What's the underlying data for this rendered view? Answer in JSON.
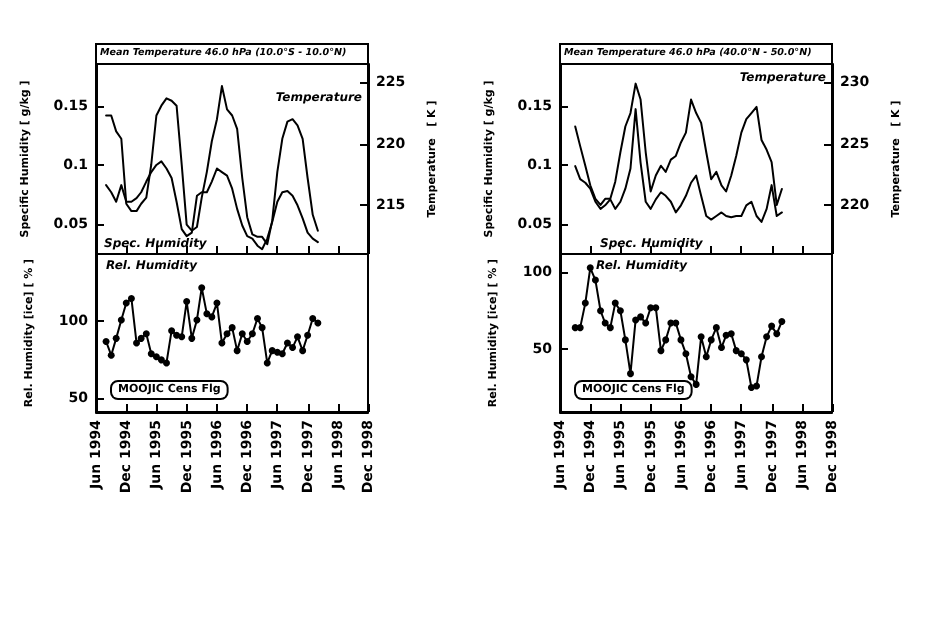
{
  "chart_data": [
    {
      "type": "line",
      "title": "Mean Temperature 46.0 hPa (10.0°S - 10.0°N)",
      "ylabel": "Specific Humidity [ g/kg ]",
      "y2label": "Temperature   [ K ]",
      "tick_labels": "y",
      "marker": "none",
      "legend": false,
      "grid": false,
      "x": [
        "1994-08",
        "1994-09",
        "1994-10",
        "1994-11",
        "1994-12",
        "1995-01",
        "1995-02",
        "1995-03",
        "1995-04",
        "1995-05",
        "1995-06",
        "1995-07",
        "1995-08",
        "1995-09",
        "1995-10",
        "1995-11",
        "1995-12",
        "1996-01",
        "1996-02",
        "1996-03",
        "1996-04",
        "1996-05",
        "1996-06",
        "1996-07",
        "1996-08",
        "1996-09",
        "1996-10",
        "1996-11",
        "1996-12",
        "1997-01",
        "1997-02",
        "1997-03",
        "1997-04",
        "1997-05",
        "1997-06",
        "1997-07",
        "1997-08",
        "1997-09",
        "1997-10",
        "1997-11",
        "1997-12",
        "1998-01",
        "1998-02"
      ],
      "xlim": [
        "1994-06",
        "1998-12"
      ],
      "xticks": [
        {
          "value": "1994-06",
          "label": null
        },
        {
          "value": "1994-12",
          "label": null
        },
        {
          "value": "1995-06",
          "label": null
        },
        {
          "value": "1995-12",
          "label": null
        },
        {
          "value": "1996-06",
          "label": null
        },
        {
          "value": "1996-12",
          "label": null
        },
        {
          "value": "1997-06",
          "label": null
        },
        {
          "value": "1997-12",
          "label": null
        },
        {
          "value": "1998-06",
          "label": null
        },
        {
          "value": "1998-12",
          "label": null
        }
      ],
      "ylim": [
        0.025,
        0.185
      ],
      "yticks": [
        0.05,
        0.1,
        0.15
      ],
      "y2lim": [
        211,
        226.5
      ],
      "y2ticks": [
        215,
        220,
        225
      ],
      "series": [
        {
          "name": "Spec. Humidity",
          "color": "#000000",
          "values": [
            0.083,
            0.077,
            0.069,
            0.083,
            0.069,
            0.069,
            0.072,
            0.077,
            0.086,
            0.094,
            0.1,
            0.103,
            0.097,
            0.089,
            0.069,
            0.046,
            0.04,
            0.043,
            0.074,
            0.077,
            0.077,
            0.086,
            0.097,
            0.094,
            0.091,
            0.08,
            0.063,
            0.049,
            0.04,
            0.038,
            0.032,
            0.029,
            0.038,
            0.052,
            0.069,
            0.077,
            0.078,
            0.074,
            0.066,
            0.055,
            0.043,
            0.038,
            0.035
          ]
        },
        {
          "name": "Temperature",
          "color": "#000000",
          "axis": "y2",
          "values": [
            222.3,
            222.3,
            221.0,
            220.4,
            215.1,
            214.5,
            214.5,
            215.1,
            215.6,
            218.3,
            222.3,
            223.1,
            223.7,
            223.5,
            223.1,
            218.3,
            213.4,
            212.9,
            213.2,
            215.6,
            217.7,
            220.2,
            222.0,
            224.7,
            222.8,
            222.3,
            221.2,
            217.2,
            214.0,
            212.6,
            212.4,
            212.4,
            211.8,
            213.7,
            217.7,
            220.4,
            221.8,
            222.0,
            221.5,
            220.4,
            217.2,
            214.2,
            212.9
          ]
        }
      ]
    },
    {
      "type": "line",
      "title": "Mean Temperature 46.0 hPa (40.0°N - 50.0°N)",
      "ylabel": "Specific Humidity [ g/kg ]",
      "y2label": "Temperature   [ K ]",
      "tick_labels": "y",
      "marker": "none",
      "legend": false,
      "grid": false,
      "x": [
        "1994-09",
        "1994-10",
        "1994-11",
        "1994-12",
        "1995-01",
        "1995-02",
        "1995-03",
        "1995-04",
        "1995-05",
        "1995-06",
        "1995-07",
        "1995-08",
        "1995-09",
        "1995-10",
        "1995-11",
        "1995-12",
        "1996-01",
        "1996-02",
        "1996-03",
        "1996-04",
        "1996-05",
        "1996-06",
        "1996-07",
        "1996-08",
        "1996-09",
        "1996-10",
        "1996-11",
        "1996-12",
        "1997-01",
        "1997-02",
        "1997-03",
        "1997-04",
        "1997-05",
        "1997-06",
        "1997-07",
        "1997-08",
        "1997-09",
        "1997-10",
        "1997-11",
        "1997-12",
        "1998-01",
        "1998-02"
      ],
      "xlim": [
        "1994-06",
        "1998-12"
      ],
      "xticks": [
        {
          "value": "1994-06",
          "label": null
        },
        {
          "value": "1994-12",
          "label": null
        },
        {
          "value": "1995-06",
          "label": null
        },
        {
          "value": "1995-12",
          "label": null
        },
        {
          "value": "1996-06",
          "label": null
        },
        {
          "value": "1996-12",
          "label": null
        },
        {
          "value": "1997-06",
          "label": null
        },
        {
          "value": "1997-12",
          "label": null
        },
        {
          "value": "1998-06",
          "label": null
        },
        {
          "value": "1998-12",
          "label": null
        }
      ],
      "ylim": [
        0.025,
        0.185
      ],
      "yticks": [
        0.05,
        0.1,
        0.15
      ],
      "y2lim": [
        216,
        231.5
      ],
      "y2ticks": [
        220,
        225,
        230
      ],
      "series": [
        {
          "name": "Spec. Humidity",
          "color": "#000000",
          "values": [
            0.099,
            0.088,
            0.085,
            0.08,
            0.069,
            0.063,
            0.066,
            0.071,
            0.063,
            0.069,
            0.08,
            0.097,
            0.147,
            0.102,
            0.069,
            0.063,
            0.071,
            0.077,
            0.074,
            0.069,
            0.06,
            0.066,
            0.074,
            0.085,
            0.091,
            0.074,
            0.057,
            0.054,
            0.057,
            0.06,
            0.057,
            0.056,
            0.057,
            0.057,
            0.066,
            0.069,
            0.057,
            0.052,
            0.063,
            0.083,
            0.057,
            0.06
          ]
        },
        {
          "name": "Temperature",
          "color": "#000000",
          "axis": "y2",
          "values": [
            226.4,
            224.8,
            223.2,
            221.6,
            220.5,
            220.0,
            220.5,
            220.5,
            221.9,
            224.3,
            226.4,
            227.5,
            229.9,
            228.6,
            224.3,
            221.1,
            222.4,
            223.2,
            222.7,
            223.7,
            224.0,
            225.1,
            225.9,
            228.6,
            227.5,
            226.7,
            224.3,
            222.1,
            222.7,
            221.6,
            221.1,
            222.4,
            224.0,
            225.9,
            227.0,
            227.5,
            228.0,
            225.3,
            224.5,
            223.5,
            220.0,
            221.3
          ]
        }
      ]
    },
    {
      "type": "line",
      "ylabel": "Rel. Humidity [ice] [ % ]",
      "annotations": [
        "MOOJIC Cens Flg"
      ],
      "marker": "circle",
      "legend": false,
      "grid": false,
      "x": [
        "1994-08",
        "1994-09",
        "1994-10",
        "1994-11",
        "1994-12",
        "1995-01",
        "1995-02",
        "1995-03",
        "1995-04",
        "1995-05",
        "1995-06",
        "1995-07",
        "1995-08",
        "1995-09",
        "1995-10",
        "1995-11",
        "1995-12",
        "1996-01",
        "1996-02",
        "1996-03",
        "1996-04",
        "1996-05",
        "1996-06",
        "1996-07",
        "1996-08",
        "1996-09",
        "1996-10",
        "1996-11",
        "1996-12",
        "1997-01",
        "1997-02",
        "1997-03",
        "1997-04",
        "1997-05",
        "1997-06",
        "1997-07",
        "1997-08",
        "1997-09",
        "1997-10",
        "1997-11",
        "1997-12",
        "1998-01",
        "1998-02"
      ],
      "xlim": [
        "1994-06",
        "1998-12"
      ],
      "xticks": [
        {
          "value": "1994-06",
          "label": "Jun 1994"
        },
        {
          "value": "1994-12",
          "label": "Dec 1994"
        },
        {
          "value": "1995-06",
          "label": "Jun 1995"
        },
        {
          "value": "1995-12",
          "label": "Dec 1995"
        },
        {
          "value": "1996-06",
          "label": "Jun 1996"
        },
        {
          "value": "1996-12",
          "label": "Dec 1996"
        },
        {
          "value": "1997-06",
          "label": "Jun 1997"
        },
        {
          "value": "1997-12",
          "label": "Dec 1997"
        },
        {
          "value": "1998-06",
          "label": "Jun 1998"
        },
        {
          "value": "1998-12",
          "label": "Dec 1998"
        }
      ],
      "ylim": [
        41,
        144
      ],
      "yticks": [
        50,
        100
      ],
      "series": [
        {
          "name": "Rel. Humidity",
          "color": "#000000",
          "values": [
            87,
            78,
            89,
            101,
            112,
            115,
            86,
            89,
            92,
            79,
            77,
            75,
            73,
            94,
            91,
            90,
            113,
            89,
            101,
            122,
            105,
            103,
            112,
            86,
            92,
            96,
            81,
            92,
            87,
            92,
            102,
            96,
            73,
            81,
            80,
            79,
            86,
            83,
            90,
            81,
            91,
            102,
            99
          ]
        }
      ]
    },
    {
      "type": "line",
      "ylabel": "Rel. Humidity [ice] [ % ]",
      "annotations": [
        "MOOJIC Cens Flg"
      ],
      "marker": "circle",
      "legend": false,
      "grid": false,
      "x": [
        "1994-09",
        "1994-10",
        "1994-11",
        "1994-12",
        "1995-01",
        "1995-02",
        "1995-03",
        "1995-04",
        "1995-05",
        "1995-06",
        "1995-07",
        "1995-08",
        "1995-09",
        "1995-10",
        "1995-11",
        "1995-12",
        "1996-01",
        "1996-02",
        "1996-03",
        "1996-04",
        "1996-05",
        "1996-06",
        "1996-07",
        "1996-08",
        "1996-09",
        "1996-10",
        "1996-11",
        "1996-12",
        "1997-01",
        "1997-02",
        "1997-03",
        "1997-04",
        "1997-05",
        "1997-06",
        "1997-07",
        "1997-08",
        "1997-09",
        "1997-10",
        "1997-11",
        "1997-12",
        "1998-01",
        "1998-02"
      ],
      "xlim": [
        "1994-06",
        "1998-12"
      ],
      "xticks": [
        {
          "value": "1994-06",
          "label": "Jun 1994"
        },
        {
          "value": "1994-12",
          "label": "Dec 1994"
        },
        {
          "value": "1995-06",
          "label": "Jun 1995"
        },
        {
          "value": "1995-12",
          "label": "Dec 1995"
        },
        {
          "value": "1996-06",
          "label": "Jun 1996"
        },
        {
          "value": "1996-12",
          "label": "Dec 1996"
        },
        {
          "value": "1997-06",
          "label": "Jun 1997"
        },
        {
          "value": "1997-12",
          "label": "Dec 1997"
        },
        {
          "value": "1998-06",
          "label": "Jun 1998"
        },
        {
          "value": "1998-12",
          "label": "Dec 1998"
        }
      ],
      "ylim": [
        9,
        112
      ],
      "yticks": [
        50,
        100
      ],
      "series": [
        {
          "name": "Rel. Humidity",
          "color": "#000000",
          "values": [
            64,
            64,
            80,
            103,
            95,
            75,
            67,
            64,
            80,
            75,
            56,
            34,
            69,
            71,
            67,
            77,
            77,
            49,
            56,
            67,
            67,
            56,
            47,
            32,
            27,
            58,
            45,
            56,
            64,
            51,
            59,
            60,
            49,
            47,
            43,
            25,
            26,
            45,
            58,
            65,
            60,
            68
          ]
        }
      ]
    }
  ]
}
